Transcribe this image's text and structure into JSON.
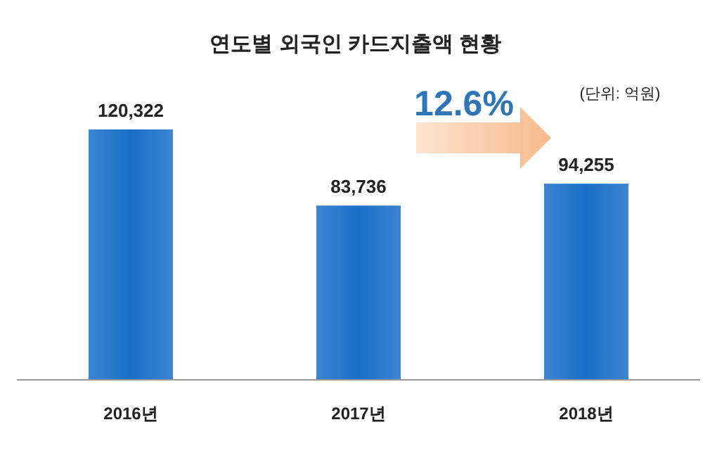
{
  "chart_data": {
    "type": "bar",
    "title": "연도별 외국인 카드지출액 현황",
    "categories": [
      "2016년",
      "2017년",
      "2018년"
    ],
    "values": [
      120322,
      83736,
      94255
    ],
    "color": "#1a6fc9",
    "value_labels": [
      "120,322",
      "83,736",
      "94,255"
    ],
    "annotations": [
      "(단위: 억원)",
      "12.6%"
    ]
  }
}
